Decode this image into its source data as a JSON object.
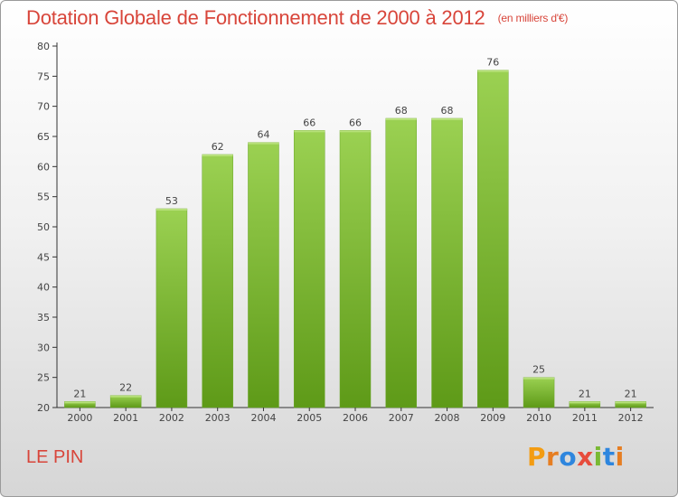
{
  "chart_data": {
    "type": "bar",
    "title": "Dotation Globale de Fonctionnement de 2000 à 2012",
    "subtitle": "(en milliers d'€)",
    "categories": [
      "2000",
      "2001",
      "2002",
      "2003",
      "2004",
      "2005",
      "2006",
      "2007",
      "2008",
      "2009",
      "2010",
      "2011",
      "2012"
    ],
    "values": [
      21,
      22,
      53,
      62,
      64,
      66,
      66,
      68,
      68,
      76,
      25,
      21,
      21
    ],
    "ylim": [
      20,
      80
    ],
    "yticks": [
      20,
      25,
      30,
      35,
      40,
      45,
      50,
      55,
      60,
      65,
      70,
      75,
      80
    ],
    "grid": false,
    "bar_color": "#7ab934",
    "data_labels": true
  },
  "footer": {
    "commune": "LE PIN",
    "logo_text": "Proxiti",
    "logo_colors": [
      "#f39c12",
      "#e67e22",
      "#2e86de",
      "#e74c3c",
      "#7ab934",
      "#2e86de",
      "#e67e22"
    ]
  },
  "colors": {
    "title": "#d8453a",
    "axis": "#333333"
  }
}
